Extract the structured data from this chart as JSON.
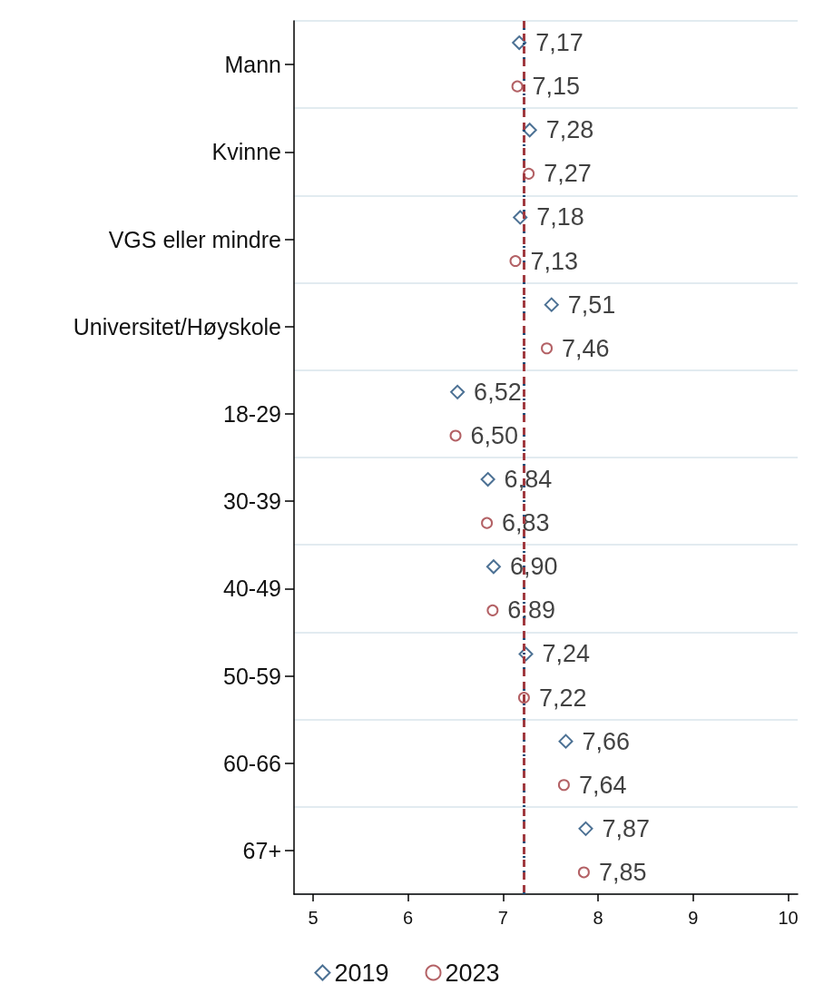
{
  "chart_data": {
    "type": "scatter",
    "orientation": "horizontal",
    "categories": [
      "Mann",
      "Kvinne",
      "VGS eller mindre",
      "Universitet/Høyskole",
      "18-29",
      "30-39",
      "40-49",
      "50-59",
      "60-66",
      "67+"
    ],
    "series": [
      {
        "name": "2019",
        "color": "#1f4e79",
        "marker": "diamond",
        "values": [
          7.17,
          7.28,
          7.18,
          7.51,
          6.52,
          6.84,
          6.9,
          7.24,
          7.66,
          7.87
        ],
        "value_labels": [
          "7,17",
          "7,28",
          "7,18",
          "7,51",
          "6,52",
          "6,84",
          "6,90",
          "7,24",
          "7,66",
          "7,87"
        ]
      },
      {
        "name": "2023",
        "color": "#a0393f",
        "marker": "circle",
        "values": [
          7.15,
          7.27,
          7.13,
          7.46,
          6.5,
          6.83,
          6.89,
          7.22,
          7.64,
          7.85
        ],
        "value_labels": [
          "7,15",
          "7,27",
          "7,13",
          "7,46",
          "6,50",
          "6,83",
          "6,89",
          "7,22",
          "7,64",
          "7,85"
        ]
      }
    ],
    "xlim": [
      4.8,
      10.1
    ],
    "xticks": [
      5,
      6,
      7,
      8,
      9,
      10
    ],
    "ref_lines": [
      {
        "axis": "x",
        "value": 7.22,
        "color": "#1f4e79",
        "line_style": "dotted"
      },
      {
        "axis": "x",
        "value": 7.22,
        "color": "#a0393f",
        "line_style": "dashed"
      }
    ],
    "grid": "y",
    "legend": "bottom"
  }
}
